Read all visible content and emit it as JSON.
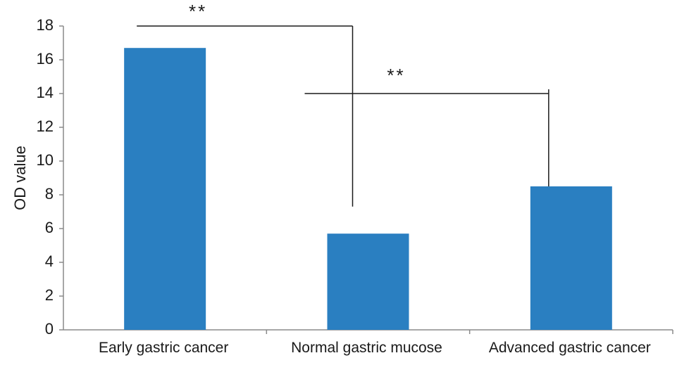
{
  "chart_data": {
    "type": "bar",
    "categories": [
      "Early gastric cancer",
      "Normal gastric mucose",
      "Advanced gastric cancer"
    ],
    "values": [
      16.7,
      5.7,
      8.5
    ],
    "title": "",
    "xlabel": "",
    "ylabel": "OD value",
    "ylim": [
      0,
      18
    ],
    "yticks": [
      "0",
      "2",
      "4",
      "6",
      "8",
      "10",
      "12",
      "14",
      "16",
      "18"
    ],
    "grid": false,
    "legend": "none",
    "bar_color": "#2a7fc1",
    "significance": [
      {
        "label": "**",
        "from": 0,
        "to": 1,
        "level": 18
      },
      {
        "label": "**",
        "from": 1,
        "to": 2,
        "level": 14
      }
    ]
  }
}
